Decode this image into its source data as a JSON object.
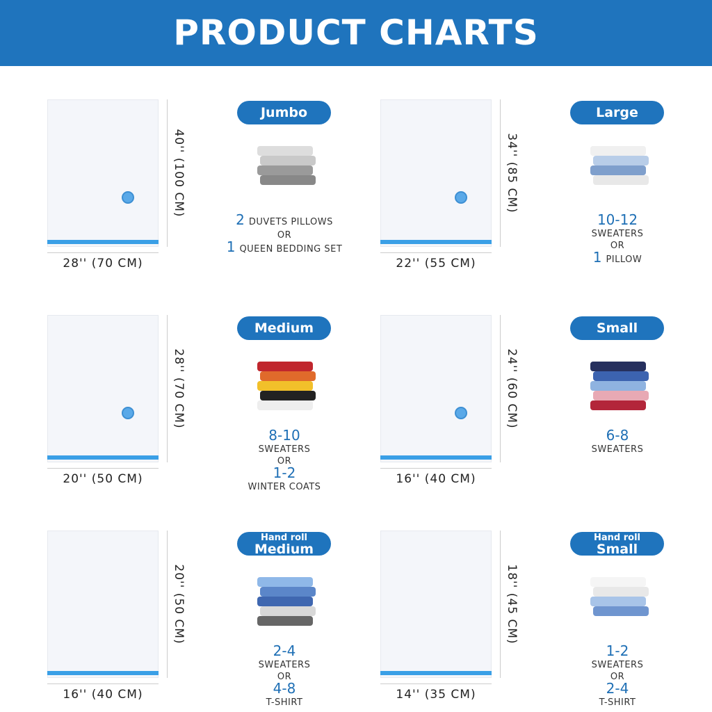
{
  "header": {
    "title": "PRODUCT CHARTS"
  },
  "products": [
    {
      "badge": "Jumbo",
      "width": "28'' (70 CM)",
      "height": "40'' (100 CM)",
      "valve": true,
      "capacity": [
        [
          {
            "t": "2",
            "big": true
          },
          {
            "t": "DUVETS PILLOWS"
          }
        ],
        [
          {
            "t": "OR"
          }
        ],
        [
          {
            "t": "1",
            "big": true
          },
          {
            "t": "QUEEN BEDDING SET"
          }
        ]
      ]
    },
    {
      "badge": "Large",
      "width": "22'' (55 CM)",
      "height": "34'' (85 CM)",
      "valve": true,
      "capacity": [
        [
          {
            "t": "10-12",
            "big": true
          }
        ],
        [
          {
            "t": "SWEATERS"
          }
        ],
        [
          {
            "t": "OR"
          }
        ],
        [
          {
            "t": "1",
            "big": true
          },
          {
            "t": "PILLOW"
          }
        ]
      ]
    },
    {
      "badge": "Medium",
      "width": "20'' (50 CM)",
      "height": "28'' (70 CM)",
      "valve": true,
      "capacity": [
        [
          {
            "t": "8-10",
            "big": true
          }
        ],
        [
          {
            "t": "SWEATERS"
          }
        ],
        [
          {
            "t": "OR"
          }
        ],
        [
          {
            "t": "1-2",
            "big": true
          }
        ],
        [
          {
            "t": "WINTER COATS"
          }
        ]
      ]
    },
    {
      "badge": "Small",
      "width": "16'' (40 CM)",
      "height": "24'' (60 CM)",
      "valve": true,
      "capacity": [
        [
          {
            "t": "6-8",
            "big": true
          }
        ],
        [
          {
            "t": "SWEATERS"
          }
        ]
      ]
    },
    {
      "badge_top": "Hand roll",
      "badge": "Medium",
      "width": "16'' (40 CM)",
      "height": "20'' (50 CM)",
      "valve": false,
      "capacity": [
        [
          {
            "t": "2-4",
            "big": true
          }
        ],
        [
          {
            "t": "SWEATERS"
          }
        ],
        [
          {
            "t": "OR"
          }
        ],
        [
          {
            "t": "4-8",
            "big": true
          }
        ],
        [
          {
            "t": "T-SHIRT"
          }
        ]
      ]
    },
    {
      "badge_top": "Hand roll",
      "badge": "Small",
      "width": "14'' (35 CM)",
      "height": "18'' (45 CM)",
      "valve": false,
      "capacity": [
        [
          {
            "t": "1-2",
            "big": true
          }
        ],
        [
          {
            "t": "SWEATERS"
          }
        ],
        [
          {
            "t": "OR"
          }
        ],
        [
          {
            "t": "2-4",
            "big": true
          }
        ],
        [
          {
            "t": "T-SHIRT"
          }
        ]
      ]
    }
  ]
}
